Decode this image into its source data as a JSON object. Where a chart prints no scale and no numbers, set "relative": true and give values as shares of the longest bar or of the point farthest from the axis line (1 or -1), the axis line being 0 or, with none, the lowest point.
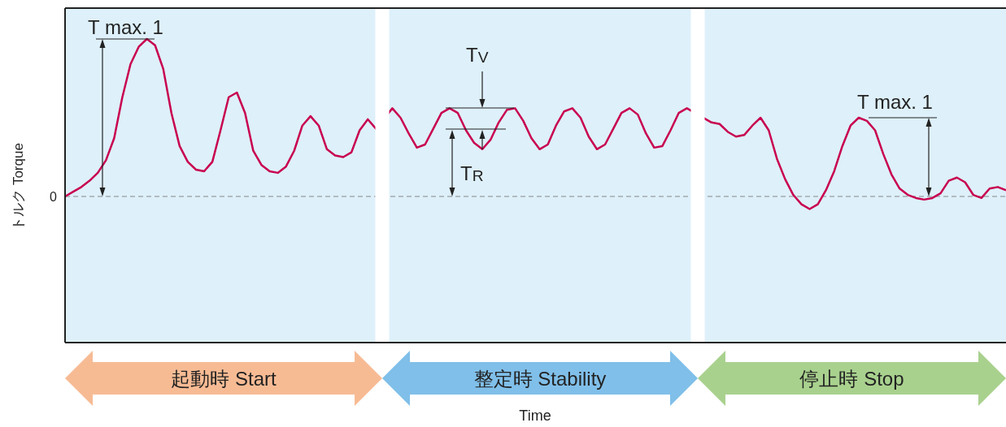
{
  "chart_data": {
    "type": "line",
    "relative": true,
    "ylabel": "トルク Torque",
    "categories": [
      null,
      null,
      null,
      null,
      null,
      null,
      null,
      null,
      null,
      null,
      null,
      null,
      null,
      null,
      null,
      null,
      null,
      null,
      null,
      null,
      null,
      null,
      null,
      null,
      null,
      null,
      null,
      null,
      null,
      null,
      null,
      null,
      null,
      null,
      null,
      null,
      null,
      null,
      null,
      null,
      null,
      null,
      null,
      null,
      null,
      null,
      null,
      null,
      null,
      null,
      null,
      null,
      null,
      null,
      null,
      null,
      null,
      null,
      null,
      null,
      null,
      null,
      null,
      null,
      null,
      null,
      null,
      null,
      null,
      null,
      null,
      null,
      null,
      null,
      null,
      null,
      null,
      null,
      null,
      null,
      null,
      null,
      null,
      null,
      null,
      null,
      null,
      null,
      null,
      null,
      null,
      null,
      null,
      null,
      null,
      null,
      null,
      null,
      null,
      null,
      null,
      null,
      null,
      null,
      null,
      null,
      null,
      null,
      null,
      null,
      null,
      null,
      null,
      null,
      null,
      null
    ],
    "series": [
      {
        "color": "#c8004f",
        "values": [
          0,
          0.03,
          0.06,
          0.1,
          0.15,
          0.23,
          0.37,
          0.63,
          0.84,
          0.95,
          1,
          0.96,
          0.81,
          0.53,
          0.32,
          0.22,
          0.17,
          0.16,
          0.22,
          0.42,
          0.63,
          0.66,
          0.53,
          0.29,
          0.2,
          0.16,
          0.15,
          0.19,
          0.29,
          0.45,
          0.51,
          0.45,
          0.3,
          0.26,
          0.25,
          0.28,
          0.42,
          0.49,
          0.43,
          null,
          0.56,
          0.5,
          0.4,
          0.31,
          0.33,
          0.43,
          0.53,
          0.56,
          0.53,
          0.42,
          0.34,
          0.3,
          0.36,
          0.47,
          0.55,
          0.56,
          0.48,
          0.37,
          0.3,
          0.33,
          0.45,
          0.54,
          0.56,
          0.5,
          0.38,
          0.3,
          0.33,
          0.43,
          0.53,
          0.56,
          0.52,
          0.4,
          0.31,
          0.32,
          0.42,
          0.53,
          0.56,
          null,
          null,
          0.47,
          0.46,
          0.41,
          0.38,
          0.39,
          0.45,
          0.5,
          0.42,
          0.24,
          0.11,
          0.01,
          -0.05,
          -0.08,
          -0.05,
          0.04,
          0.16,
          0.32,
          0.45,
          0.5,
          0.48,
          0.42,
          0.27,
          0.14,
          0.05,
          0.01,
          -0.01,
          -0.02,
          -0.01,
          0.02,
          0.1,
          0.12,
          0.09,
          0.01,
          -0.01,
          0.05,
          0.06,
          0.04
        ]
      }
    ],
    "ref_lines": [
      {
        "axis": "y",
        "value": 0,
        "label": "0",
        "color": "#888888",
        "line_style": "dashed"
      }
    ],
    "annotations": [
      "T max. 1",
      "T$_{V}$",
      "T$_{R}$",
      "T max. 1",
      "起動時 Start",
      "整定時 Stability",
      "停止時 Stop",
      "Time"
    ],
    "legend": false,
    "grid": false,
    "marker": "none",
    "line_style": "solid"
  }
}
